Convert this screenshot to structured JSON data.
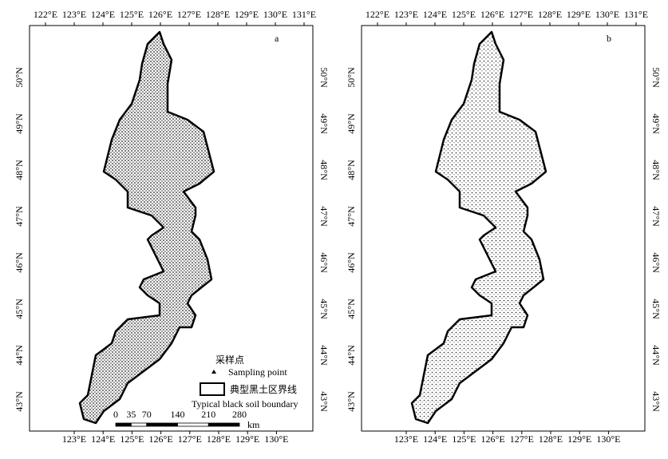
{
  "lon_top": [
    "122°E",
    "123°E",
    "124°E",
    "125°E",
    "126°E",
    "127°E",
    "128°E",
    "129°E",
    "130°E",
    "131°E"
  ],
  "lon_bottom": [
    "123°E",
    "124°E",
    "125°E",
    "126°E",
    "127°E",
    "128°E",
    "129°E",
    "130°E"
  ],
  "lat": [
    "43°N",
    "44°N",
    "45°N",
    "46°N",
    "47°N",
    "48°N",
    "49°N",
    "50°N"
  ],
  "panels": [
    {
      "label": "a"
    },
    {
      "label": "b"
    }
  ],
  "legend": {
    "point_cn": "采样点",
    "point_en": "Sampling point",
    "boundary_cn": "典型黑土区界线",
    "boundary_en": "Typical black soil boundary"
  },
  "scale_bar": {
    "ticks": [
      0,
      35,
      70,
      140,
      210,
      280
    ],
    "unit": "km"
  }
}
